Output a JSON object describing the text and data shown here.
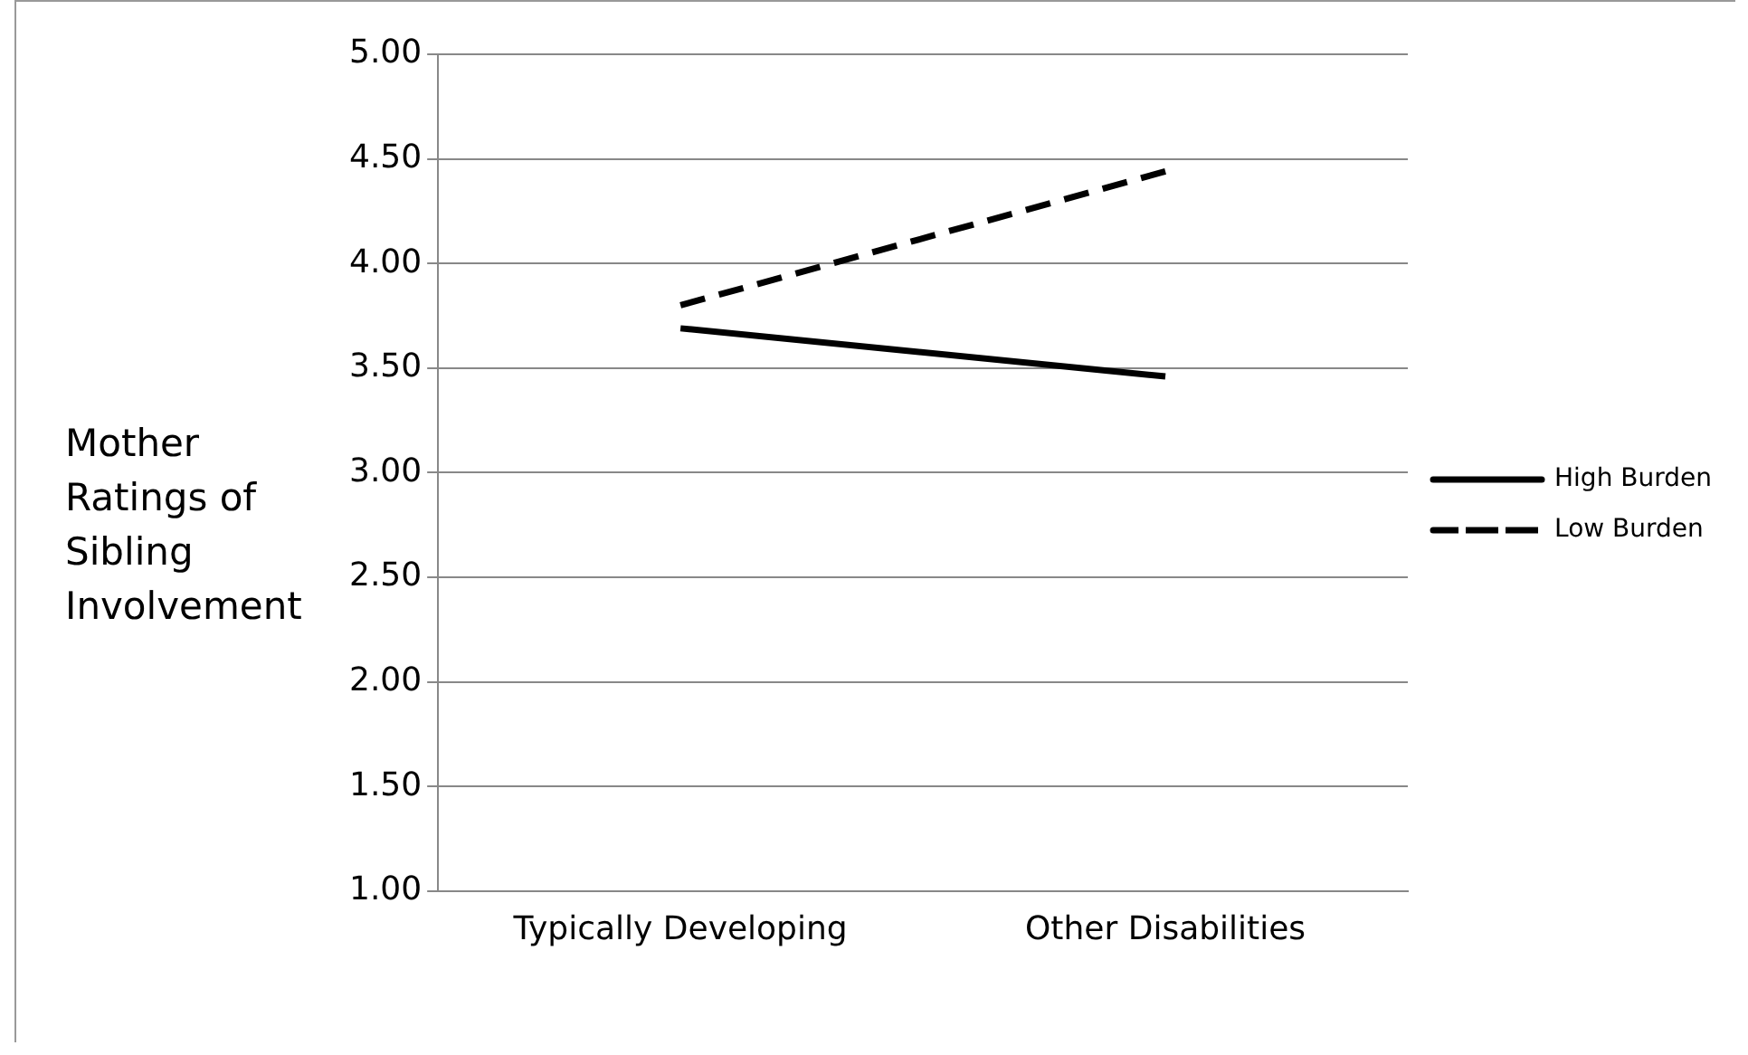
{
  "chart_data": {
    "type": "line",
    "ylabel": "Mother Ratings of Sibling Involvement",
    "categories": [
      "Typically Developing",
      "Other Disabilities"
    ],
    "series": [
      {
        "name": "High Burden",
        "color": "#000000",
        "values": [
          3.69,
          3.46
        ],
        "line_style": "solid"
      },
      {
        "name": "Low Burden",
        "color": "#000000",
        "values": [
          3.8,
          4.44
        ],
        "line_style": "dashed"
      }
    ],
    "ylim": [
      1,
      5
    ],
    "yticks": [
      {
        "value": 1,
        "label": "1.00"
      },
      {
        "value": 1.5,
        "label": "1.50"
      },
      {
        "value": 2,
        "label": "2.00"
      },
      {
        "value": 2.5,
        "label": "2.50"
      },
      {
        "value": 3,
        "label": "3.00"
      },
      {
        "value": 3.5,
        "label": "3.50"
      },
      {
        "value": 4,
        "label": "4.00"
      },
      {
        "value": 4.5,
        "label": "4.50"
      },
      {
        "value": 5,
        "label": "5.00"
      }
    ],
    "grid": "y",
    "legend": "right",
    "marker": "none"
  }
}
